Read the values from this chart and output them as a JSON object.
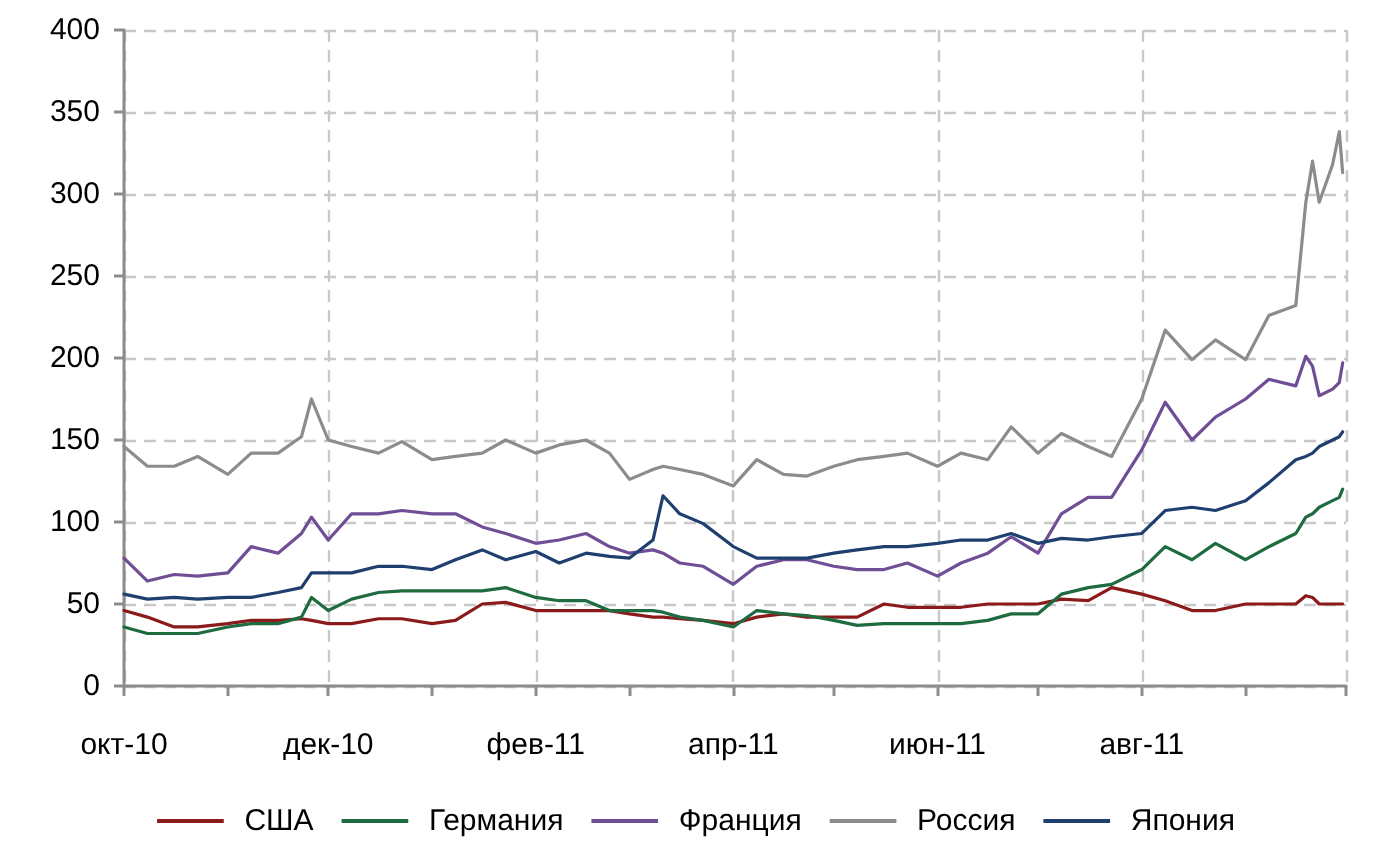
{
  "chart_data": {
    "type": "line",
    "x": [
      "2010-10-01",
      "2010-10-08",
      "2010-10-16",
      "2010-10-23",
      "2010-11-01",
      "2010-11-08",
      "2010-11-16",
      "2010-11-23",
      "2010-11-26",
      "2010-12-01",
      "2010-12-08",
      "2010-12-16",
      "2010-12-23",
      "2011-01-01",
      "2011-01-08",
      "2011-01-16",
      "2011-01-23",
      "2011-02-01",
      "2011-02-08",
      "2011-02-16",
      "2011-02-23",
      "2011-03-01",
      "2011-03-08",
      "2011-03-11",
      "2011-03-16",
      "2011-03-23",
      "2011-04-01",
      "2011-04-08",
      "2011-04-16",
      "2011-04-23",
      "2011-05-01",
      "2011-05-08",
      "2011-05-16",
      "2011-05-23",
      "2011-06-01",
      "2011-06-08",
      "2011-06-16",
      "2011-06-23",
      "2011-07-01",
      "2011-07-08",
      "2011-07-16",
      "2011-07-23",
      "2011-08-01",
      "2011-08-08",
      "2011-08-16",
      "2011-08-23",
      "2011-09-01",
      "2011-09-08",
      "2011-09-16",
      "2011-09-19",
      "2011-09-21",
      "2011-09-23",
      "2011-09-27",
      "2011-09-29",
      "2011-09-30"
    ],
    "series": [
      {
        "name": "США",
        "color": "#8b1a1a",
        "values": [
          46,
          42,
          36,
          36,
          38,
          40,
          40,
          41,
          40,
          38,
          38,
          41,
          41,
          38,
          40,
          50,
          51,
          46,
          46,
          46,
          46,
          44,
          42,
          42,
          41,
          40,
          38,
          42,
          44,
          42,
          42,
          42,
          50,
          48,
          48,
          48,
          50,
          50,
          50,
          53,
          52,
          60,
          56,
          52,
          46,
          46,
          50,
          50,
          50,
          55,
          54,
          50,
          50,
          50,
          50
        ]
      },
      {
        "name": "Германия",
        "color": "#1e6b40",
        "values": [
          36,
          32,
          32,
          32,
          36,
          38,
          38,
          42,
          54,
          46,
          53,
          57,
          58,
          58,
          58,
          58,
          60,
          54,
          52,
          52,
          46,
          46,
          46,
          45,
          42,
          40,
          36,
          46,
          44,
          43,
          40,
          37,
          38,
          38,
          38,
          38,
          40,
          44,
          44,
          56,
          60,
          62,
          71,
          85,
          77,
          87,
          77,
          85,
          93,
          103,
          105,
          109,
          113,
          115,
          120
        ]
      },
      {
        "name": "Франция",
        "color": "#6f4e96",
        "values": [
          78,
          64,
          68,
          67,
          69,
          85,
          81,
          93,
          103,
          89,
          105,
          105,
          107,
          105,
          105,
          97,
          93,
          87,
          89,
          93,
          85,
          81,
          83,
          81,
          75,
          73,
          62,
          73,
          77,
          77,
          73,
          71,
          71,
          75,
          67,
          75,
          81,
          91,
          81,
          105,
          115,
          115,
          144,
          173,
          150,
          164,
          175,
          187,
          183,
          201,
          195,
          177,
          181,
          185,
          197
        ]
      },
      {
        "name": "Россия",
        "color": "#8c8c8c",
        "values": [
          146,
          134,
          134,
          140,
          129,
          142,
          142,
          152,
          175,
          150,
          146,
          142,
          149,
          138,
          140,
          142,
          150,
          142,
          147,
          150,
          142,
          126,
          132,
          134,
          132,
          129,
          122,
          138,
          129,
          128,
          134,
          138,
          140,
          142,
          134,
          142,
          138,
          158,
          142,
          154,
          146,
          140,
          175,
          217,
          199,
          211,
          199,
          226,
          232,
          295,
          320,
          295,
          318,
          338,
          313
        ]
      },
      {
        "name": "Япония",
        "color": "#1f3f6e",
        "values": [
          56,
          53,
          54,
          53,
          54,
          54,
          57,
          60,
          69,
          69,
          69,
          73,
          73,
          71,
          77,
          83,
          77,
          82,
          75,
          81,
          79,
          78,
          89,
          116,
          105,
          99,
          85,
          78,
          78,
          78,
          81,
          83,
          85,
          85,
          87,
          89,
          89,
          93,
          87,
          90,
          89,
          91,
          93,
          107,
          109,
          107,
          113,
          124,
          138,
          140,
          142,
          146,
          150,
          152,
          155
        ]
      }
    ],
    "xlim": [
      "2010-10-01",
      "2011-10-01"
    ],
    "xticks": [
      {
        "value": "2010-10-01",
        "label": "окт-10"
      },
      {
        "value": "2010-11-01",
        "label": null
      },
      {
        "value": "2010-12-01",
        "label": "дек-10"
      },
      {
        "value": "2011-01-01",
        "label": null
      },
      {
        "value": "2011-02-01",
        "label": "фев-11"
      },
      {
        "value": "2011-03-01",
        "label": null
      },
      {
        "value": "2011-04-01",
        "label": "апр-11"
      },
      {
        "value": "2011-05-01",
        "label": null
      },
      {
        "value": "2011-06-01",
        "label": "июн-11"
      },
      {
        "value": "2011-07-01",
        "label": null
      },
      {
        "value": "2011-08-01",
        "label": "авг-11"
      },
      {
        "value": "2011-09-01",
        "label": null
      },
      {
        "value": "2011-10-01",
        "label": null
      }
    ],
    "ylim": [
      0,
      400
    ],
    "yticks": [
      0,
      50,
      100,
      150,
      200,
      250,
      300,
      350,
      400
    ],
    "grid": true,
    "legend": "bottom"
  }
}
